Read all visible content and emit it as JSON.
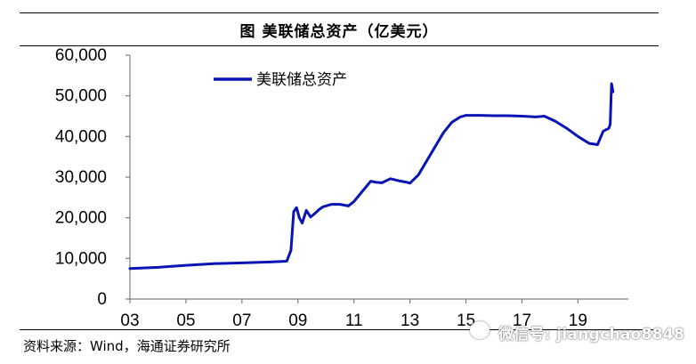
{
  "title": "图  美联储总资产（亿美元）",
  "source": "资料来源：Wind，海通证券研究所",
  "watermark": "微信号: jiangchao8848",
  "colors": {
    "series": "#0a14b4",
    "axis": "#7f7f7f",
    "text": "#000000"
  },
  "chart_data": {
    "type": "line",
    "title": "图  美联储总资产（亿美元）",
    "xlabel": "",
    "ylabel": "",
    "xlim": [
      2003.0,
      2020.8
    ],
    "ylim": [
      0,
      60000
    ],
    "yticks": [
      0,
      10000,
      20000,
      30000,
      40000,
      50000,
      60000
    ],
    "ytick_labels": [
      "0",
      "10,000",
      "20,000",
      "30,000",
      "40,000",
      "50,000",
      "60,000"
    ],
    "xticks": [
      2003,
      2005,
      2007,
      2009,
      2011,
      2013,
      2015,
      2017,
      2019
    ],
    "xtick_labels": [
      "03",
      "05",
      "07",
      "09",
      "11",
      "13",
      "15",
      "17",
      "19"
    ],
    "grid": false,
    "legend": "top-left",
    "series": [
      {
        "name": "美联储总资产",
        "x": [
          2003.0,
          2004.0,
          2005.0,
          2006.0,
          2007.0,
          2008.0,
          2008.6,
          2008.75,
          2008.85,
          2008.95,
          2009.05,
          2009.15,
          2009.3,
          2009.45,
          2009.6,
          2009.75,
          2009.9,
          2010.2,
          2010.5,
          2010.8,
          2011.0,
          2011.3,
          2011.6,
          2011.8,
          2012.0,
          2012.3,
          2012.6,
          2012.9,
          2013.0,
          2013.3,
          2013.6,
          2013.9,
          2014.2,
          2014.5,
          2014.8,
          2015.0,
          2015.5,
          2016.0,
          2016.5,
          2017.0,
          2017.5,
          2017.8,
          2018.2,
          2018.6,
          2019.0,
          2019.4,
          2019.7,
          2019.9,
          2020.1,
          2020.15,
          2020.2,
          2020.25
        ],
        "y": [
          7500,
          7800,
          8300,
          8700,
          8900,
          9100,
          9300,
          12000,
          21500,
          22500,
          20000,
          18700,
          21800,
          20200,
          21000,
          22000,
          22700,
          23300,
          23300,
          22900,
          24000,
          26500,
          29000,
          28700,
          28600,
          29600,
          29100,
          28700,
          28500,
          30500,
          34000,
          37500,
          41000,
          43500,
          44800,
          45200,
          45200,
          45100,
          45100,
          45000,
          44800,
          45000,
          43700,
          42000,
          40000,
          38300,
          38000,
          41300,
          42000,
          43000,
          53000,
          51000
        ]
      }
    ]
  }
}
